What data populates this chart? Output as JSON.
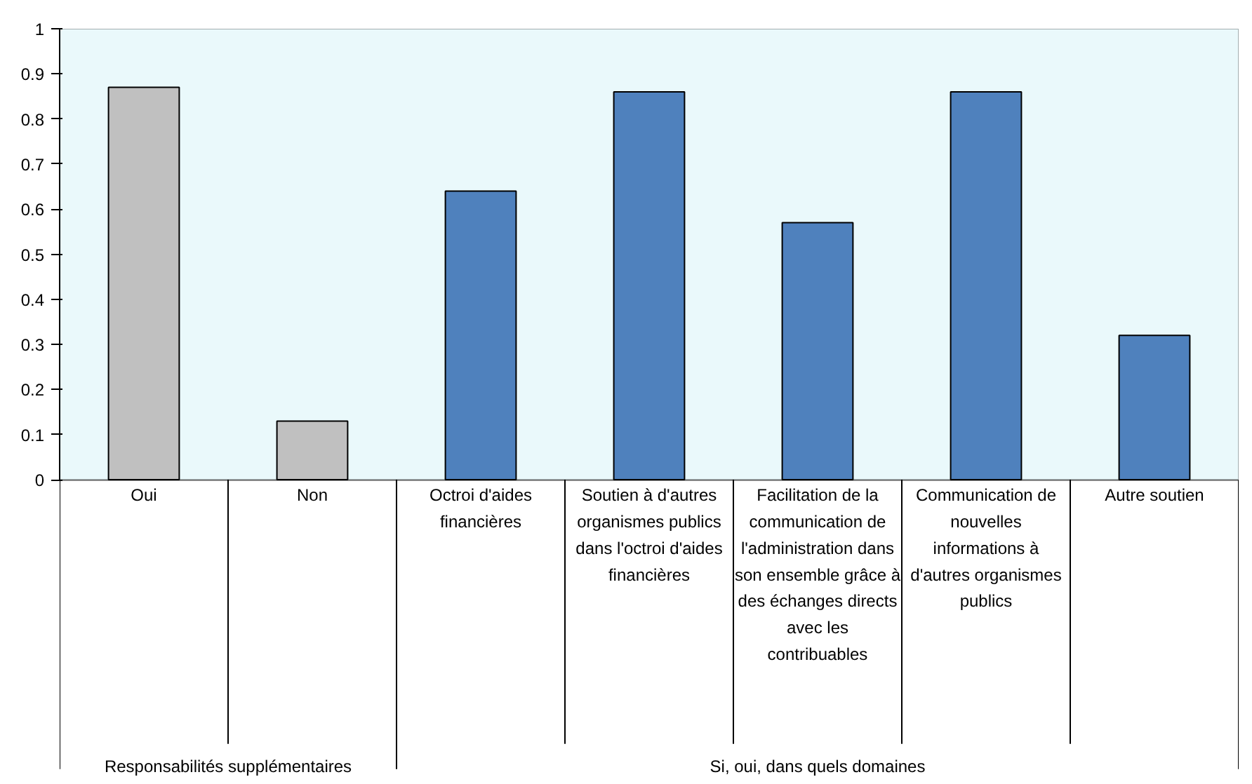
{
  "chart_data": {
    "type": "bar",
    "categories": [
      "Oui",
      "Non",
      "Octroi d'aides financières",
      "Soutien à d'autres organismes publics dans l'octroi d'aides financières",
      "Facilitation de la communication de l'administration dans son ensemble grâce à des échanges directs avec les contribuables",
      "Communication de nouvelles informations à d'autres organismes publics",
      "Autre soutien"
    ],
    "values": [
      0.87,
      0.13,
      0.64,
      0.86,
      0.57,
      0.86,
      0.32
    ],
    "colors": [
      "#c0c0c0",
      "#c0c0c0",
      "#4f81bd",
      "#4f81bd",
      "#4f81bd",
      "#4f81bd",
      "#4f81bd"
    ],
    "annotations": [
      "Responsabilités supplémentaires",
      "Si, oui, dans quels domaines"
    ],
    "ylim": [
      0,
      1
    ],
    "yticks": [
      0,
      0.1,
      0.2,
      0.3,
      0.4,
      0.5,
      0.6,
      0.7,
      0.8,
      0.9,
      1
    ],
    "grid": "y"
  }
}
